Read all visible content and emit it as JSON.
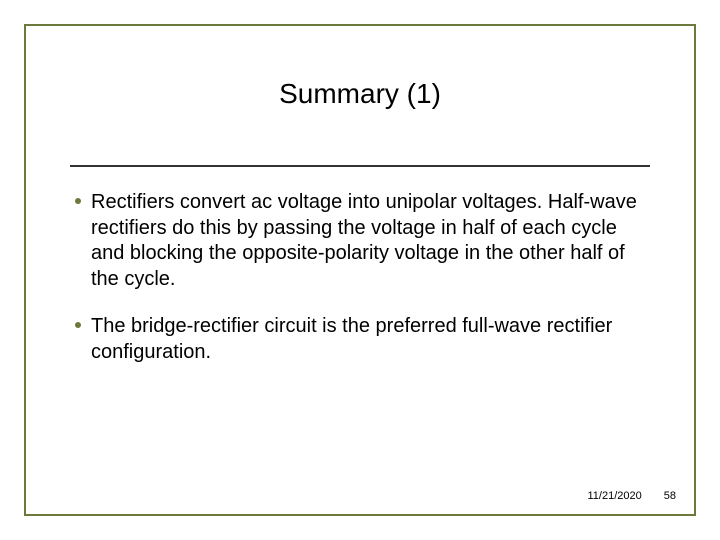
{
  "frame": {
    "border_color": "#6b7a3a"
  },
  "title": {
    "text": "Summary (1)",
    "fontsize": 28,
    "color": "#000000"
  },
  "divider": {
    "color": "#333333"
  },
  "bullets": {
    "color": "#6b7a3a",
    "text_fontsize": 20,
    "items": [
      "Rectifiers convert ac voltage into unipolar voltages.  Half-wave rectifiers do this by passing the voltage in half of each cycle and blocking the opposite-polarity voltage in the other half of the cycle.",
      "The bridge-rectifier circuit is the preferred full-wave rectifier configuration."
    ]
  },
  "footer": {
    "date": "11/21/2020",
    "page": "58",
    "fontsize": 11
  }
}
